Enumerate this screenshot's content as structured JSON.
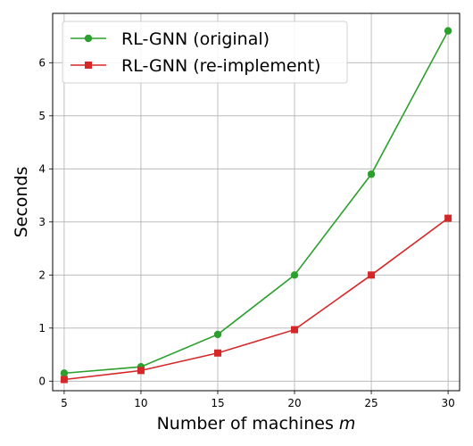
{
  "chart_data": {
    "type": "line",
    "title": "",
    "xlabel": "Number of machines",
    "xlabel_var": "m",
    "ylabel": "Seconds",
    "x": [
      5,
      10,
      15,
      20,
      25,
      30
    ],
    "xticks": [
      5,
      10,
      15,
      20,
      25,
      30
    ],
    "yticks": [
      0,
      1,
      2,
      3,
      4,
      5,
      6
    ],
    "xlim": [
      4.25,
      30.75
    ],
    "ylim": [
      -0.18,
      6.93
    ],
    "grid": true,
    "legend_position": "top-left",
    "series": [
      {
        "name": "RL-GNN (original)",
        "values": [
          0.15,
          0.27,
          0.88,
          2.0,
          3.9,
          6.6
        ],
        "color": "#2ca02c",
        "marker": "circle"
      },
      {
        "name": "RL-GNN (re-implement)",
        "values": [
          0.03,
          0.2,
          0.53,
          0.97,
          2.0,
          3.07
        ],
        "color": "#d62728",
        "marker": "square"
      }
    ]
  }
}
